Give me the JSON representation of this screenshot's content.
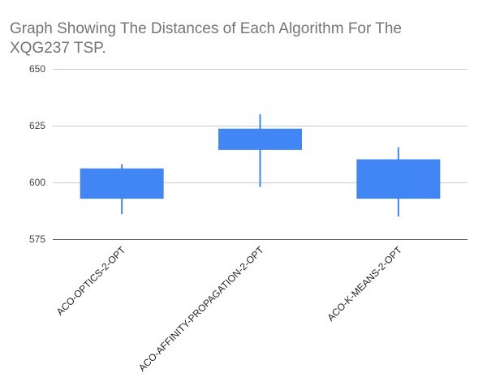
{
  "chart_data": {
    "type": "candlestick",
    "title": "Graph Showing The Distances of Each Algorithm For The XQG237 TSP.",
    "xlabel": "",
    "ylabel": "",
    "ylim": [
      575,
      650
    ],
    "yticks": [
      575,
      600,
      625,
      650
    ],
    "grid": true,
    "legend": "none",
    "color": "#4285f4",
    "categories": [
      "ACO-OPTICS-2-OPT",
      "ACO-AFFINITY-PROPAGATION-2-OPT",
      "ACO-K-MEANS-2-OPT"
    ],
    "candles": [
      {
        "low": 586,
        "open": 593,
        "close": 606,
        "high": 608
      },
      {
        "low": 598,
        "open": 614.5,
        "close": 623.5,
        "high": 630
      },
      {
        "low": 585,
        "open": 593,
        "close": 610,
        "high": 615.5
      }
    ]
  }
}
